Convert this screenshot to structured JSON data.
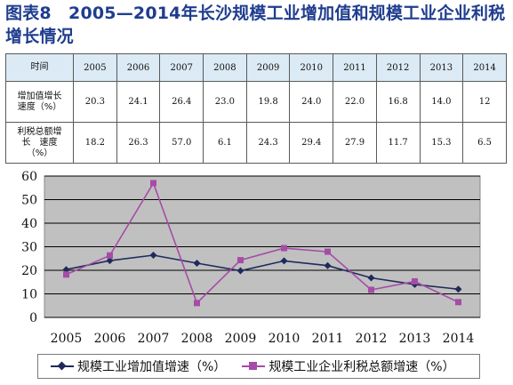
{
  "title": "图表8　2005—2014年长沙规模工业增加值和规模工业企业利税增长情况",
  "table": {
    "header_label": "时间",
    "years": [
      "2005",
      "2006",
      "2007",
      "2008",
      "2009",
      "2010",
      "2011",
      "2012",
      "2013",
      "2014"
    ],
    "rows": [
      {
        "label": "增加值增长　速度（%）",
        "values": [
          "20.3",
          "24.1",
          "26.4",
          "23.0",
          "19.8",
          "24.0",
          "22.0",
          "16.8",
          "14.0",
          "12"
        ]
      },
      {
        "label": "利税总额增长　速度（%）",
        "values": [
          "18.2",
          "26.3",
          "57.0",
          "6.1",
          "24.3",
          "29.4",
          "27.9",
          "11.7",
          "15.3",
          "6.5"
        ]
      }
    ]
  },
  "chart_data": {
    "type": "line",
    "x": [
      "2005",
      "2006",
      "2007",
      "2008",
      "2009",
      "2010",
      "2011",
      "2012",
      "2013",
      "2014"
    ],
    "ylim": [
      0,
      60
    ],
    "yticks": [
      "0",
      "10",
      "20",
      "30",
      "40",
      "50",
      "60"
    ],
    "grid": "horizontal",
    "plot_background": "#c0c0c0",
    "legend_position": "bottom",
    "series": [
      {
        "name": "规模工业增加值增速（%）",
        "color": "#1f2a5c",
        "marker": "diamond",
        "values": [
          20.3,
          24.1,
          26.4,
          23.0,
          19.8,
          24.0,
          22.0,
          16.8,
          14.0,
          12
        ]
      },
      {
        "name": "规模工业企业利税总额增速（%）",
        "color": "#a64ca6",
        "marker": "square",
        "values": [
          18.2,
          26.3,
          57.0,
          6.1,
          24.3,
          29.4,
          27.9,
          11.7,
          15.3,
          6.5
        ]
      }
    ]
  }
}
